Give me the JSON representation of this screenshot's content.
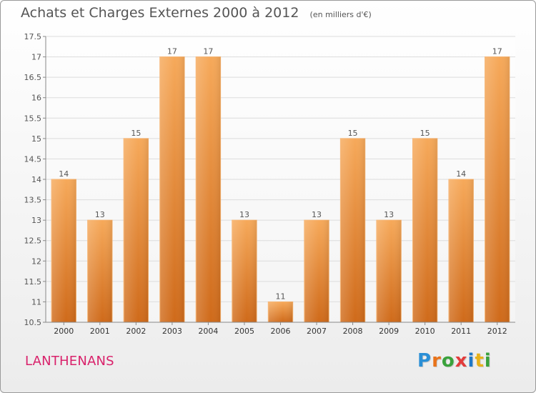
{
  "title": "Achats et Charges Externes 2000 à 2012",
  "unit_note": "(en milliers d'€)",
  "place_name": "LANTHENANS",
  "logo": {
    "letters": [
      "P",
      "r",
      "o",
      "x",
      "i",
      "t",
      "i"
    ],
    "colors": [
      "#2a8fd6",
      "#e8731a",
      "#3aa23c",
      "#e23c3c",
      "#1f78c8",
      "#e8b21a",
      "#39a23c"
    ]
  },
  "chart_data": {
    "type": "bar",
    "categories": [
      "2000",
      "2001",
      "2002",
      "2003",
      "2004",
      "2005",
      "2006",
      "2007",
      "2008",
      "2009",
      "2010",
      "2011",
      "2012"
    ],
    "values": [
      14,
      13,
      15,
      17,
      17,
      13,
      11,
      13,
      15,
      13,
      15,
      14,
      17
    ],
    "data_labels": [
      "14",
      "13",
      "15",
      "17",
      "17",
      "13",
      "11",
      "13",
      "15",
      "13",
      "15",
      "14",
      "17"
    ],
    "ylim": [
      10.5,
      17.5
    ],
    "yticks": [
      "10.5",
      "11",
      "11.5",
      "12",
      "12.5",
      "13",
      "13.5",
      "14",
      "14.5",
      "15",
      "15.5",
      "16",
      "16.5",
      "17",
      "17.5"
    ],
    "grid": true,
    "bar_color": "#f0a04a",
    "grid_color": "#dcdcdc"
  }
}
